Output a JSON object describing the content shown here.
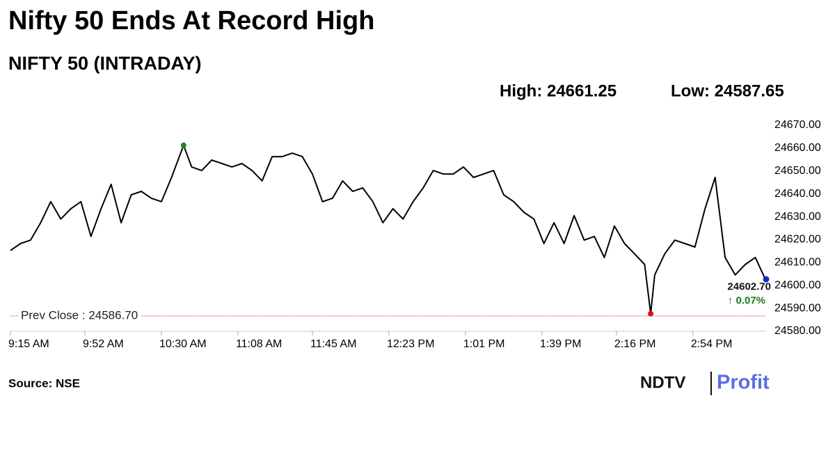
{
  "chart_data": {
    "type": "line",
    "title": "Nifty 50 Ends At Record High",
    "subtitle": "NIFTY 50 (INTRADAY)",
    "high_label": "High: 24661.25",
    "low_label": "Low: 24587.65",
    "high": {
      "x": "10:41 AM",
      "value": 24661.25,
      "color": "#1a8a1a"
    },
    "low": {
      "x": "2:33 PM",
      "value": 24587.65,
      "color": "#e01010"
    },
    "last": {
      "value": 24602.7,
      "label": "24602.70",
      "color": "#1030c0",
      "change_label": "↑ 0.07%",
      "change_color": "#1a7a1a"
    },
    "prev_close": {
      "value": 24586.7,
      "label": "Prev Close : 24586.70",
      "color": "#c04040"
    },
    "source": "Source: NSE",
    "brand": "NDTV",
    "brand_sub": "Profit",
    "color": "#000000",
    "x": [
      "9:15 AM",
      "9:20 AM",
      "9:25 AM",
      "9:30 AM",
      "9:35 AM",
      "9:40 AM",
      "9:45 AM",
      "9:50 AM",
      "9:55 AM",
      "10:00 AM",
      "10:05 AM",
      "10:10 AM",
      "10:15 AM",
      "10:20 AM",
      "10:25 AM",
      "10:30 AM",
      "10:35 AM",
      "10:41 AM",
      "10:45 AM",
      "10:50 AM",
      "10:55 AM",
      "11:00 AM",
      "11:05 AM",
      "11:10 AM",
      "11:15 AM",
      "11:20 AM",
      "11:25 AM",
      "11:30 AM",
      "11:35 AM",
      "11:40 AM",
      "11:45 AM",
      "11:50 AM",
      "11:55 AM",
      "12:00 PM",
      "12:05 PM",
      "12:10 PM",
      "12:15 PM",
      "12:20 PM",
      "12:25 PM",
      "12:30 PM",
      "12:35 PM",
      "12:40 PM",
      "12:45 PM",
      "12:50 PM",
      "12:55 PM",
      "1:00 PM",
      "1:05 PM",
      "1:10 PM",
      "1:15 PM",
      "1:20 PM",
      "1:25 PM",
      "1:30 PM",
      "1:35 PM",
      "1:40 PM",
      "1:45 PM",
      "1:50 PM",
      "1:55 PM",
      "2:00 PM",
      "2:05 PM",
      "2:10 PM",
      "2:15 PM",
      "2:20 PM",
      "2:25 PM",
      "2:30 PM",
      "2:33 PM",
      "2:35 PM",
      "2:40 PM",
      "2:45 PM",
      "2:50 PM",
      "2:55 PM",
      "3:00 PM",
      "3:05 PM",
      "3:10 PM",
      "3:15 PM",
      "3:20 PM",
      "3:25 PM",
      "3:30 PM"
    ],
    "values": [
      24615.3,
      24618.3,
      24619.8,
      24627.4,
      24636.6,
      24629,
      24633.5,
      24636.6,
      24621.4,
      24633.5,
      24644.2,
      24627.4,
      24639.6,
      24641.1,
      24638.1,
      24636.6,
      24647.2,
      24661.25,
      24651.8,
      24650.2,
      24654.8,
      24653.3,
      24651.8,
      24653.3,
      24650.2,
      24645.7,
      24656.3,
      24656.3,
      24657.8,
      24656.3,
      24648.7,
      24636.6,
      24638.1,
      24645.7,
      24641.1,
      24642.6,
      24636.6,
      24627.4,
      24633.5,
      24629,
      24636.6,
      24642.6,
      24650.2,
      24648.7,
      24648.7,
      24651.8,
      24647.2,
      24648.7,
      24650.2,
      24639.6,
      24636.6,
      24632,
      24629,
      24618.3,
      24627.4,
      24618.3,
      24630.5,
      24619.8,
      24621.4,
      24612.2,
      24626,
      24618.3,
      24613.8,
      24609.2,
      24587.65,
      24604.6,
      24613.8,
      24619.8,
      24618.3,
      24616.8,
      24633.5,
      24647.2,
      24612.2,
      24604.6,
      24609.2,
      24612.2,
      24602.7
    ],
    "xlim": [
      "9:15 AM",
      "3:30 PM"
    ],
    "xticks": [
      "9:15 AM",
      "9:52 AM",
      "10:30 AM",
      "11:08 AM",
      "11:45 AM",
      "12:23 PM",
      "1:01 PM",
      "1:39 PM",
      "2:16 PM",
      "2:54 PM"
    ],
    "ylim": [
      24580,
      24670
    ],
    "yticks": [
      {
        "value": 24580,
        "label": "24580.00"
      },
      {
        "value": 24590,
        "label": "24590.00"
      },
      {
        "value": 24600,
        "label": "24600.00"
      },
      {
        "value": 24610,
        "label": "24610.00"
      },
      {
        "value": 24620,
        "label": "24620.00"
      },
      {
        "value": 24630,
        "label": "24630.00"
      },
      {
        "value": 24640,
        "label": "24640.00"
      },
      {
        "value": 24650,
        "label": "24650.00"
      },
      {
        "value": 24660,
        "label": "24660.00"
      },
      {
        "value": 24670,
        "label": "24670.00"
      }
    ]
  }
}
